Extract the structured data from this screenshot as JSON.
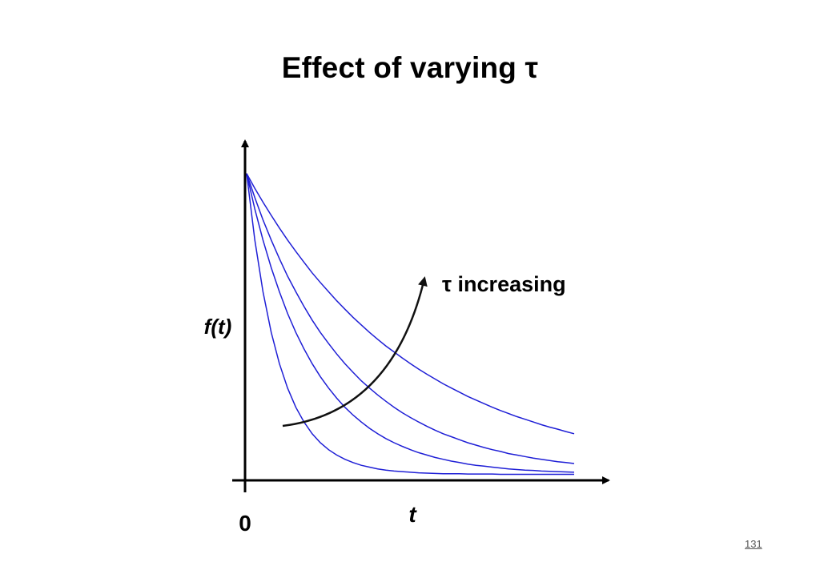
{
  "slide": {
    "title": "Effect of varying τ",
    "page_number": "131"
  },
  "chart_data": {
    "type": "line",
    "title": "",
    "xlabel": "t",
    "ylabel": "f(t)",
    "x_tick_labels": [
      "0"
    ],
    "annotation": {
      "text": "τ increasing"
    },
    "colors": {
      "series": "#1f1fd6",
      "axes": "#000000",
      "annotation_arrow": "#111111"
    },
    "x": [
      0,
      0.25,
      0.5,
      0.75,
      1,
      1.25,
      1.5,
      1.75,
      2,
      2.25,
      2.5,
      2.75,
      3,
      3.25,
      3.5,
      3.75,
      4,
      4.25,
      4.5,
      4.75,
      5,
      5.25,
      5.5,
      5.75,
      6,
      6.25,
      6.5,
      6.75,
      7,
      7.25,
      7.5,
      7.75,
      8,
      8.25,
      8.5,
      8.75,
      9,
      9.25,
      9.5,
      9.75,
      10
    ],
    "series": [
      {
        "values": [
          1.0,
          0.779,
          0.607,
          0.472,
          0.368,
          0.287,
          0.223,
          0.174,
          0.135,
          0.105,
          0.082,
          0.064,
          0.05,
          0.039,
          0.03,
          0.024,
          0.018,
          0.014,
          0.011,
          0.009,
          0.007,
          0.005,
          0.004,
          0.003,
          0.002,
          0.002,
          0.002,
          0.001,
          0.001,
          0.001,
          0.001,
          0.0,
          0.0,
          0.0,
          0.0,
          0.0,
          0.0,
          0.0,
          0.0,
          0.0,
          0.0
        ]
      },
      {
        "values": [
          1.0,
          0.882,
          0.779,
          0.687,
          0.607,
          0.535,
          0.472,
          0.417,
          0.368,
          0.325,
          0.287,
          0.253,
          0.223,
          0.197,
          0.174,
          0.153,
          0.135,
          0.119,
          0.105,
          0.093,
          0.082,
          0.072,
          0.064,
          0.056,
          0.05,
          0.044,
          0.039,
          0.034,
          0.03,
          0.027,
          0.024,
          0.021,
          0.018,
          0.016,
          0.014,
          0.013,
          0.011,
          0.01,
          0.009,
          0.008,
          0.007
        ]
      },
      {
        "values": [
          1.0,
          0.92,
          0.846,
          0.779,
          0.717,
          0.659,
          0.607,
          0.558,
          0.513,
          0.472,
          0.435,
          0.4,
          0.368,
          0.339,
          0.311,
          0.287,
          0.264,
          0.243,
          0.223,
          0.205,
          0.189,
          0.174,
          0.16,
          0.147,
          0.135,
          0.125,
          0.115,
          0.105,
          0.097,
          0.089,
          0.082,
          0.076,
          0.069,
          0.064,
          0.059,
          0.054,
          0.05,
          0.046,
          0.042,
          0.039,
          0.036
        ]
      },
      {
        "values": [
          1.0,
          0.951,
          0.905,
          0.861,
          0.819,
          0.779,
          0.741,
          0.705,
          0.67,
          0.638,
          0.607,
          0.577,
          0.549,
          0.522,
          0.497,
          0.472,
          0.449,
          0.427,
          0.407,
          0.387,
          0.368,
          0.35,
          0.333,
          0.317,
          0.301,
          0.287,
          0.273,
          0.259,
          0.247,
          0.235,
          0.223,
          0.212,
          0.202,
          0.192,
          0.183,
          0.174,
          0.165,
          0.157,
          0.15,
          0.142,
          0.135
        ]
      }
    ],
    "xlim": [
      0,
      10
    ],
    "ylim": [
      -0.02,
      1.05
    ],
    "grid": false,
    "legend": "none"
  }
}
